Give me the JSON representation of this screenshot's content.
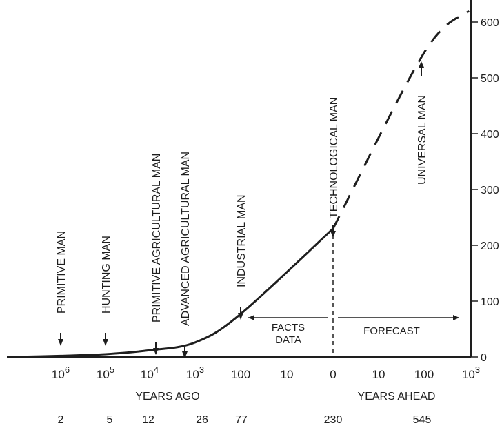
{
  "chart_data": {
    "type": "line",
    "title": "",
    "xlabel": "",
    "ylabel": "",
    "ylim": [
      0,
      600
    ],
    "yticks": [
      "0",
      "100",
      "200",
      "300",
      "400",
      "500",
      "600"
    ],
    "x_ticks": [
      {
        "base": "10",
        "exp": "6"
      },
      {
        "base": "10",
        "exp": "5"
      },
      {
        "base": "10",
        "exp": "4"
      },
      {
        "base": "10",
        "exp": "3"
      },
      {
        "base": "100",
        "exp": ""
      },
      {
        "base": "10",
        "exp": ""
      },
      {
        "base": "0",
        "exp": ""
      },
      {
        "base": "10",
        "exp": ""
      },
      {
        "base": "100",
        "exp": ""
      },
      {
        "base": "10",
        "exp": "3"
      }
    ],
    "x_captions": {
      "ago": "YEARS AGO",
      "ahead": "YEARS AHEAD"
    },
    "regions": {
      "facts_line1": "FACTS",
      "facts_line2": "DATA",
      "forecast": "FORECAST"
    },
    "series": [
      {
        "style": "solid",
        "points": [
          {
            "x": "10^6 years ago",
            "y": 2
          },
          {
            "x": "10^5 years ago",
            "y": 5
          },
          {
            "x": "10^4 years ago",
            "y": 12
          },
          {
            "x": "10^3 years ago",
            "y": 26
          },
          {
            "x": "100 years ago",
            "y": 77
          },
          {
            "x": "0",
            "y": 230
          }
        ]
      },
      {
        "style": "dashed",
        "points": [
          {
            "x": "0",
            "y": 230
          },
          {
            "x": "100 years ahead",
            "y": 545
          },
          {
            "x": "10^3 years ahead",
            "y": 620
          }
        ]
      }
    ],
    "annotations": [
      {
        "label": "PRIMITIVE MAN",
        "value": "2"
      },
      {
        "label": "HUNTING MAN",
        "value": "5"
      },
      {
        "label": "PRIMITIVE AGRICULTURAL MAN",
        "value": "12"
      },
      {
        "label": "ADVANCED AGRICULTURAL MAN",
        "value": "26"
      },
      {
        "label": "INDUSTRIAL MAN",
        "value": "77"
      },
      {
        "label": "TECHNOLOGICAL MAN",
        "value": "230"
      },
      {
        "label": "UNIVERSAL MAN",
        "value": "545"
      }
    ],
    "grid": false,
    "legend": "none",
    "colors": {
      "ink": "#1e1e1e",
      "background": "#ffffff"
    }
  }
}
